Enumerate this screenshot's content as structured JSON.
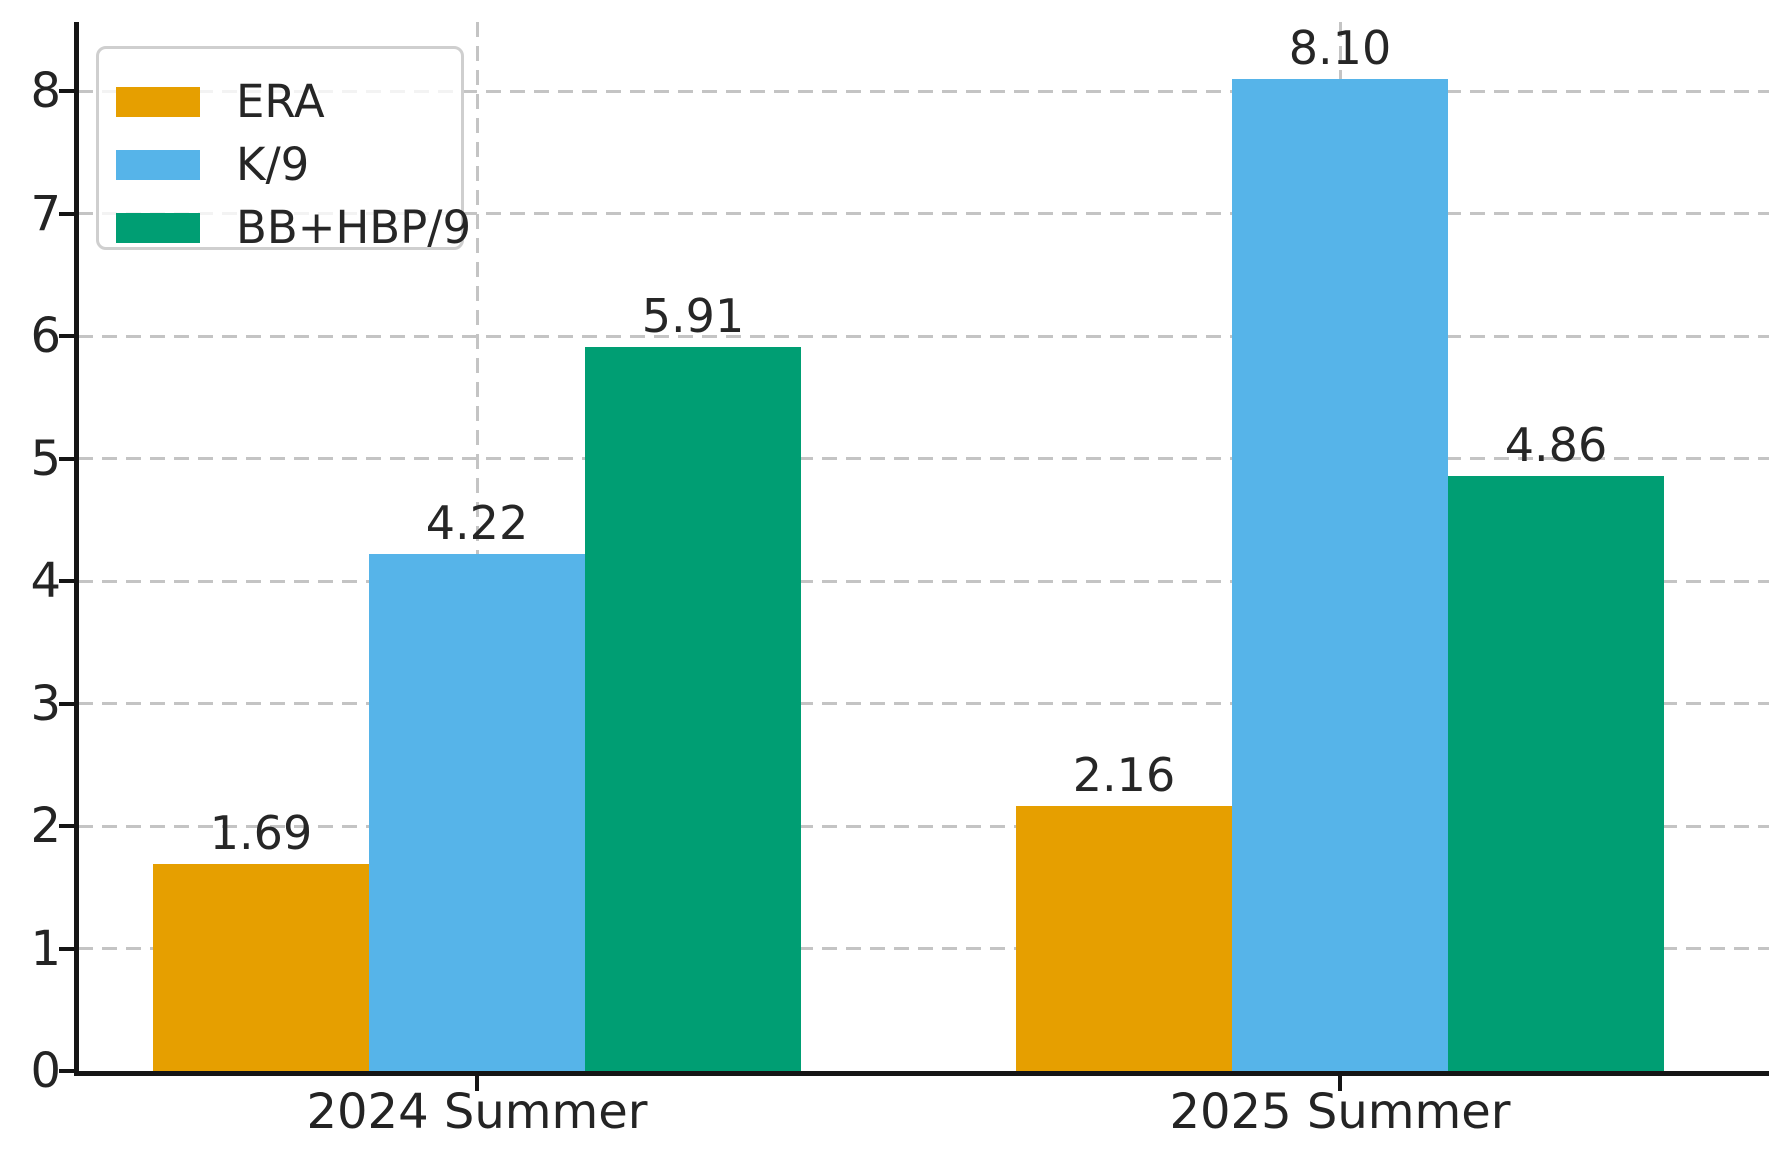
{
  "chart_data": {
    "type": "bar",
    "title": "",
    "xlabel": "",
    "ylabel": "",
    "categories": [
      "2024 Summer",
      "2025 Summer"
    ],
    "series": [
      {
        "name": "ERA",
        "color": "#E69F00",
        "values": [
          1.69,
          2.16
        ],
        "value_labels": [
          "1.69",
          "2.16"
        ]
      },
      {
        "name": "K/9",
        "color": "#56B4E9",
        "values": [
          4.22,
          8.1
        ],
        "value_labels": [
          "4.22",
          "8.10"
        ]
      },
      {
        "name": "BB+HBP/9",
        "color": "#009E73",
        "values": [
          5.91,
          4.86
        ],
        "value_labels": [
          "5.91",
          "4.86"
        ]
      }
    ],
    "ylim": [
      0,
      8.54
    ],
    "yticks": [
      0,
      1,
      2,
      3,
      4,
      5,
      6,
      7,
      8
    ],
    "ytick_labels": [
      "0",
      "1",
      "2",
      "3",
      "4",
      "5",
      "6",
      "7",
      "8"
    ],
    "grid": "dashed, horizontal at integer y-values and vertical at category centers",
    "legend_position": "upper-left",
    "colors": {
      "grid": "#c4c4c4",
      "axis": "#151515",
      "text": "#262626",
      "legend_border": "#cfcfcf"
    }
  }
}
